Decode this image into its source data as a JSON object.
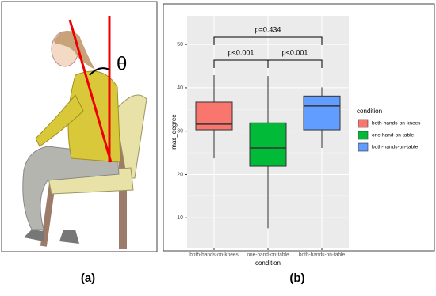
{
  "chart_data": {
    "type": "box",
    "categories": [
      "both-hands-on-knees",
      "one-hand-on-table",
      "both-hands-on-table"
    ],
    "boxes": [
      {
        "min": 23.7,
        "q1": 30.3,
        "median": 31.6,
        "q3": 36.7,
        "max": 42.9,
        "color": "#F8766D"
      },
      {
        "min": 7.6,
        "q1": 21.9,
        "median": 26.1,
        "q3": 31.9,
        "max": 42.7,
        "color": "#00BA38"
      },
      {
        "min": 26.1,
        "q1": 30.3,
        "median": 35.8,
        "q3": 38.1,
        "max": 40.1,
        "color": "#619CFF"
      }
    ],
    "xlabel": "condition",
    "ylabel": "max_degree",
    "ylim": [
      3.1,
      56.6
    ],
    "yticks": [
      10,
      20,
      30,
      40,
      50
    ],
    "grid": true,
    "legend_title": "condition",
    "annotations": [
      {
        "text": "p<0.001"
      },
      {
        "text": "p<0.001"
      },
      {
        "text": "p=0.434"
      }
    ]
  },
  "angle_label": "θ",
  "panel_labels": [
    "(a)",
    "(b)"
  ]
}
